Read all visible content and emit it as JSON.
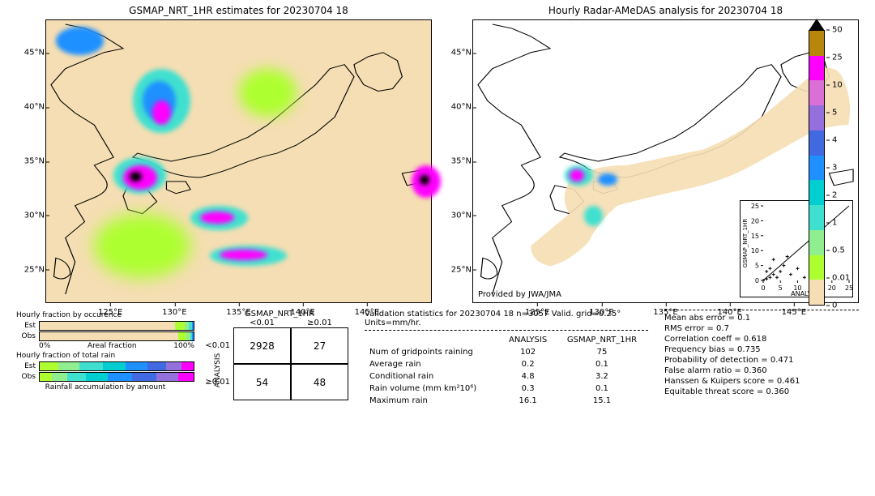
{
  "left_panel": {
    "title": "GSMAP_NRT_1HR estimates for 20230704 18",
    "yticks": [
      "25°N",
      "30°N",
      "35°N",
      "40°N",
      "45°N"
    ],
    "xticks": [
      "125°E",
      "130°E",
      "135°E",
      "140°E",
      "145°E"
    ],
    "xlim": [
      120,
      150
    ],
    "ylim": [
      22,
      48
    ],
    "background_color": "#f5deb3"
  },
  "right_panel": {
    "title": "Hourly Radar-AMeDAS analysis for 20230704 18",
    "yticks": [
      "25°N",
      "30°N",
      "35°N",
      "40°N",
      "45°N"
    ],
    "xticks": [
      "125°E",
      "130°E",
      "135°E",
      "140°E",
      "145°E"
    ],
    "background_color": "#ffffff",
    "attribution": "Provided by JWA/JMA",
    "scatter": {
      "xlabel": "ANALYSIS",
      "ylabel": "GSMAP_NRT_1HR",
      "xlim": [
        0,
        25
      ],
      "ylim": [
        0,
        25
      ],
      "ticks": [
        0,
        5,
        10,
        15,
        20,
        25
      ]
    }
  },
  "colorbar": {
    "top_triangle_color": "#000000",
    "colors": [
      "#b8860b",
      "#ff00ff",
      "#da70d6",
      "#9370db",
      "#4169e1",
      "#1e90ff",
      "#00ced1",
      "#40e0d0",
      "#90ee90",
      "#adff2f",
      "#f5deb3"
    ],
    "ticks": [
      "50",
      "25",
      "10",
      "5",
      "4",
      "3",
      "2",
      "1",
      "0.5",
      "0.01",
      "0"
    ],
    "label_fontsize": 10
  },
  "fractions": {
    "occurrence_title": "Hourly fraction by occurence",
    "total_rain_title": "Hourly fraction of total rain",
    "accumulation_title": "Rainfall accumulation by amount",
    "axis_label": "Areal fraction",
    "axis_0": "0%",
    "axis_100": "100%",
    "rows": [
      "Est",
      "Obs"
    ],
    "occurrence_est": [
      {
        "c": "#f5deb3",
        "w": 88
      },
      {
        "c": "#adff2f",
        "w": 6
      },
      {
        "c": "#90ee90",
        "w": 3
      },
      {
        "c": "#40e0d0",
        "w": 2
      },
      {
        "c": "#1e90ff",
        "w": 1
      }
    ],
    "occurrence_obs": [
      {
        "c": "#f5deb3",
        "w": 90
      },
      {
        "c": "#adff2f",
        "w": 5
      },
      {
        "c": "#90ee90",
        "w": 3
      },
      {
        "c": "#40e0d0",
        "w": 1
      },
      {
        "c": "#1e90ff",
        "w": 1
      }
    ],
    "rain_est": [
      {
        "c": "#adff2f",
        "w": 12
      },
      {
        "c": "#90ee90",
        "w": 14
      },
      {
        "c": "#40e0d0",
        "w": 15
      },
      {
        "c": "#00ced1",
        "w": 15
      },
      {
        "c": "#1e90ff",
        "w": 14
      },
      {
        "c": "#4169e1",
        "w": 12
      },
      {
        "c": "#9370db",
        "w": 10
      },
      {
        "c": "#ff00ff",
        "w": 8
      }
    ],
    "rain_obs": [
      {
        "c": "#adff2f",
        "w": 8
      },
      {
        "c": "#90ee90",
        "w": 10
      },
      {
        "c": "#40e0d0",
        "w": 12
      },
      {
        "c": "#00ced1",
        "w": 14
      },
      {
        "c": "#1e90ff",
        "w": 16
      },
      {
        "c": "#4169e1",
        "w": 16
      },
      {
        "c": "#9370db",
        "w": 14
      },
      {
        "c": "#ff00ff",
        "w": 10
      }
    ]
  },
  "confusion": {
    "title": "GSMAP_NRT_1HR",
    "ylabel": "ANALYSIS",
    "col_headers": [
      "<0.01",
      "≥0.01"
    ],
    "row_headers": [
      "<0.01",
      "≥0.01"
    ],
    "cells": [
      [
        "2928",
        "27"
      ],
      [
        "54",
        "48"
      ]
    ]
  },
  "validation": {
    "heading": "Validation statistics for 20230704 18  n=3057 Valid. grid=0.25°  Units=mm/hr.",
    "col_headers": [
      "ANALYSIS",
      "GSMAP_NRT_1HR"
    ],
    "rows": [
      {
        "label": "Num of gridpoints raining",
        "a": "102",
        "b": "75"
      },
      {
        "label": "Average rain",
        "a": "0.2",
        "b": "0.1"
      },
      {
        "label": "Conditional rain",
        "a": "4.8",
        "b": "3.2"
      },
      {
        "label": "Rain volume (mm km²10⁶)",
        "a": "0.3",
        "b": "0.1"
      },
      {
        "label": "Maximum rain",
        "a": "16.1",
        "b": "15.1"
      }
    ],
    "scores": [
      "Mean abs error =    0.1",
      "RMS error =    0.7",
      "Correlation coeff =  0.618",
      "Frequency bias =  0.735",
      "Probability of detection =  0.471",
      "False alarm ratio =  0.360",
      "Hanssen & Kuipers score =  0.461",
      "Equitable threat score =  0.360"
    ]
  }
}
